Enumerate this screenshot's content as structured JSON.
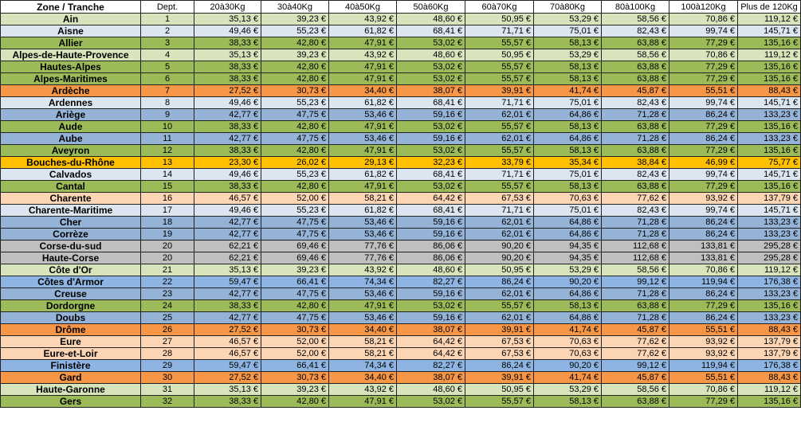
{
  "headers": [
    "Zone / Tranche",
    "Dept.",
    "20à30Kg",
    "30à40Kg",
    "40à50Kg",
    "50à60Kg",
    "60à70Kg",
    "70à80Kg",
    "80à100Kg",
    "100à120Kg",
    "Plus de 120Kg"
  ],
  "colors": {
    "green": "#9bbb59",
    "lightblue": "#dce6f1",
    "lightgreen": "#d8e4bc",
    "orange": "#f79646",
    "blue": "#95b3d7",
    "yellow": "#ffc000",
    "peach": "#fcd5b4",
    "gray": "#bfbfbf",
    "darkblue": "#8db4e2"
  },
  "rows": [
    {
      "zone": "Ain",
      "dept": "1",
      "color": "lightgreen",
      "vals": [
        "35,13 €",
        "39,23 €",
        "43,92 €",
        "48,60 €",
        "50,95 €",
        "53,29 €",
        "58,56 €",
        "70,86 €",
        "119,12 €"
      ]
    },
    {
      "zone": "Aisne",
      "dept": "2",
      "color": "lightblue",
      "vals": [
        "49,46 €",
        "55,23 €",
        "61,82 €",
        "68,41 €",
        "71,71 €",
        "75,01 €",
        "82,43 €",
        "99,74 €",
        "145,71 €"
      ]
    },
    {
      "zone": "Allier",
      "dept": "3",
      "color": "green",
      "vals": [
        "38,33 €",
        "42,80 €",
        "47,91 €",
        "53,02 €",
        "55,57 €",
        "58,13 €",
        "63,88 €",
        "77,29 €",
        "135,16 €"
      ]
    },
    {
      "zone": "Alpes-de-Haute-Provence",
      "dept": "4",
      "color": "lightgreen",
      "vals": [
        "35,13 €",
        "39,23 €",
        "43,92 €",
        "48,60 €",
        "50,95 €",
        "53,29 €",
        "58,56 €",
        "70,86 €",
        "119,12 €"
      ]
    },
    {
      "zone": "Hautes-Alpes",
      "dept": "5",
      "color": "green",
      "vals": [
        "38,33 €",
        "42,80 €",
        "47,91 €",
        "53,02 €",
        "55,57 €",
        "58,13 €",
        "63,88 €",
        "77,29 €",
        "135,16 €"
      ]
    },
    {
      "zone": "Alpes-Maritimes",
      "dept": "6",
      "color": "green",
      "vals": [
        "38,33 €",
        "42,80 €",
        "47,91 €",
        "53,02 €",
        "55,57 €",
        "58,13 €",
        "63,88 €",
        "77,29 €",
        "135,16 €"
      ]
    },
    {
      "zone": "Ardèche",
      "dept": "7",
      "color": "orange",
      "vals": [
        "27,52 €",
        "30,73 €",
        "34,40 €",
        "38,07 €",
        "39,91 €",
        "41,74 €",
        "45,87 €",
        "55,51 €",
        "88,43 €"
      ]
    },
    {
      "zone": "Ardennes",
      "dept": "8",
      "color": "lightblue",
      "vals": [
        "49,46 €",
        "55,23 €",
        "61,82 €",
        "68,41 €",
        "71,71 €",
        "75,01 €",
        "82,43 €",
        "99,74 €",
        "145,71 €"
      ]
    },
    {
      "zone": "Ariège",
      "dept": "9",
      "color": "blue",
      "vals": [
        "42,77 €",
        "47,75 €",
        "53,46 €",
        "59,16 €",
        "62,01 €",
        "64,86 €",
        "71,28 €",
        "86,24 €",
        "133,23 €"
      ]
    },
    {
      "zone": "Aude",
      "dept": "10",
      "color": "green",
      "vals": [
        "38,33 €",
        "42,80 €",
        "47,91 €",
        "53,02 €",
        "55,57 €",
        "58,13 €",
        "63,88 €",
        "77,29 €",
        "135,16 €"
      ]
    },
    {
      "zone": "Aube",
      "dept": "11",
      "color": "blue",
      "vals": [
        "42,77 €",
        "47,75 €",
        "53,46 €",
        "59,16 €",
        "62,01 €",
        "64,86 €",
        "71,28 €",
        "86,24 €",
        "133,23 €"
      ]
    },
    {
      "zone": "Aveyron",
      "dept": "12",
      "color": "green",
      "vals": [
        "38,33 €",
        "42,80 €",
        "47,91 €",
        "53,02 €",
        "55,57 €",
        "58,13 €",
        "63,88 €",
        "77,29 €",
        "135,16 €"
      ]
    },
    {
      "zone": "Bouches-du-Rhône",
      "dept": "13",
      "color": "yellow",
      "vals": [
        "23,30 €",
        "26,02 €",
        "29,13 €",
        "32,23 €",
        "33,79 €",
        "35,34 €",
        "38,84 €",
        "46,99 €",
        "75,77 €"
      ]
    },
    {
      "zone": "Calvados",
      "dept": "14",
      "color": "lightblue",
      "vals": [
        "49,46 €",
        "55,23 €",
        "61,82 €",
        "68,41 €",
        "71,71 €",
        "75,01 €",
        "82,43 €",
        "99,74 €",
        "145,71 €"
      ]
    },
    {
      "zone": "Cantal",
      "dept": "15",
      "color": "green",
      "vals": [
        "38,33 €",
        "42,80 €",
        "47,91 €",
        "53,02 €",
        "55,57 €",
        "58,13 €",
        "63,88 €",
        "77,29 €",
        "135,16 €"
      ]
    },
    {
      "zone": "Charente",
      "dept": "16",
      "color": "peach",
      "vals": [
        "46,57 €",
        "52,00 €",
        "58,21 €",
        "64,42 €",
        "67,53 €",
        "70,63 €",
        "77,62 €",
        "93,92 €",
        "137,79 €"
      ]
    },
    {
      "zone": "Charente-Maritime",
      "dept": "17",
      "color": "lightblue",
      "vals": [
        "49,46 €",
        "55,23 €",
        "61,82 €",
        "68,41 €",
        "71,71 €",
        "75,01 €",
        "82,43 €",
        "99,74 €",
        "145,71 €"
      ]
    },
    {
      "zone": "Cher",
      "dept": "18",
      "color": "blue",
      "vals": [
        "42,77 €",
        "47,75 €",
        "53,46 €",
        "59,16 €",
        "62,01 €",
        "64,86 €",
        "71,28 €",
        "86,24 €",
        "133,23 €"
      ]
    },
    {
      "zone": "Corrèze",
      "dept": "19",
      "color": "blue",
      "vals": [
        "42,77 €",
        "47,75 €",
        "53,46 €",
        "59,16 €",
        "62,01 €",
        "64,86 €",
        "71,28 €",
        "86,24 €",
        "133,23 €"
      ]
    },
    {
      "zone": "Corse-du-sud",
      "dept": "20",
      "color": "gray",
      "vals": [
        "62,21 €",
        "69,46 €",
        "77,76 €",
        "86,06 €",
        "90,20 €",
        "94,35 €",
        "112,68 €",
        "133,81 €",
        "295,28 €"
      ]
    },
    {
      "zone": "Haute-Corse",
      "dept": "20",
      "color": "gray",
      "vals": [
        "62,21 €",
        "69,46 €",
        "77,76 €",
        "86,06 €",
        "90,20 €",
        "94,35 €",
        "112,68 €",
        "133,81 €",
        "295,28 €"
      ]
    },
    {
      "zone": "Côte d'Or",
      "dept": "21",
      "color": "lightgreen",
      "vals": [
        "35,13 €",
        "39,23 €",
        "43,92 €",
        "48,60 €",
        "50,95 €",
        "53,29 €",
        "58,56 €",
        "70,86 €",
        "119,12 €"
      ]
    },
    {
      "zone": "Côtes d'Armor",
      "dept": "22",
      "color": "darkblue",
      "vals": [
        "59,47 €",
        "66,41 €",
        "74,34 €",
        "82,27 €",
        "86,24 €",
        "90,20 €",
        "99,12 €",
        "119,94 €",
        "176,38 €"
      ]
    },
    {
      "zone": "Creuse",
      "dept": "23",
      "color": "blue",
      "vals": [
        "42,77 €",
        "47,75 €",
        "53,46 €",
        "59,16 €",
        "62,01 €",
        "64,86 €",
        "71,28 €",
        "86,24 €",
        "133,23 €"
      ]
    },
    {
      "zone": "Dordorgne",
      "dept": "24",
      "color": "green",
      "vals": [
        "38,33 €",
        "42,80 €",
        "47,91 €",
        "53,02 €",
        "55,57 €",
        "58,13 €",
        "63,88 €",
        "77,29 €",
        "135,16 €"
      ]
    },
    {
      "zone": "Doubs",
      "dept": "25",
      "color": "blue",
      "vals": [
        "42,77 €",
        "47,75 €",
        "53,46 €",
        "59,16 €",
        "62,01 €",
        "64,86 €",
        "71,28 €",
        "86,24 €",
        "133,23 €"
      ]
    },
    {
      "zone": "Drôme",
      "dept": "26",
      "color": "orange",
      "vals": [
        "27,52 €",
        "30,73 €",
        "34,40 €",
        "38,07 €",
        "39,91 €",
        "41,74 €",
        "45,87 €",
        "55,51 €",
        "88,43 €"
      ]
    },
    {
      "zone": "Eure",
      "dept": "27",
      "color": "peach",
      "vals": [
        "46,57 €",
        "52,00 €",
        "58,21 €",
        "64,42 €",
        "67,53 €",
        "70,63 €",
        "77,62 €",
        "93,92 €",
        "137,79 €"
      ]
    },
    {
      "zone": "Eure-et-Loir",
      "dept": "28",
      "color": "peach",
      "vals": [
        "46,57 €",
        "52,00 €",
        "58,21 €",
        "64,42 €",
        "67,53 €",
        "70,63 €",
        "77,62 €",
        "93,92 €",
        "137,79 €"
      ]
    },
    {
      "zone": "Finistère",
      "dept": "29",
      "color": "darkblue",
      "vals": [
        "59,47 €",
        "66,41 €",
        "74,34 €",
        "82,27 €",
        "86,24 €",
        "90,20 €",
        "99,12 €",
        "119,94 €",
        "176,38 €"
      ]
    },
    {
      "zone": "Gard",
      "dept": "30",
      "color": "orange",
      "vals": [
        "27,52 €",
        "30,73 €",
        "34,40 €",
        "38,07 €",
        "39,91 €",
        "41,74 €",
        "45,87 €",
        "55,51 €",
        "88,43 €"
      ]
    },
    {
      "zone": "Haute-Garonne",
      "dept": "31",
      "color": "lightgreen",
      "vals": [
        "35,13 €",
        "39,23 €",
        "43,92 €",
        "48,60 €",
        "50,95 €",
        "53,29 €",
        "58,56 €",
        "70,86 €",
        "119,12 €"
      ]
    },
    {
      "zone": "Gers",
      "dept": "32",
      "color": "green",
      "vals": [
        "38,33 €",
        "42,80 €",
        "47,91 €",
        "53,02 €",
        "55,57 €",
        "58,13 €",
        "63,88 €",
        "77,29 €",
        "135,16 €"
      ]
    }
  ]
}
